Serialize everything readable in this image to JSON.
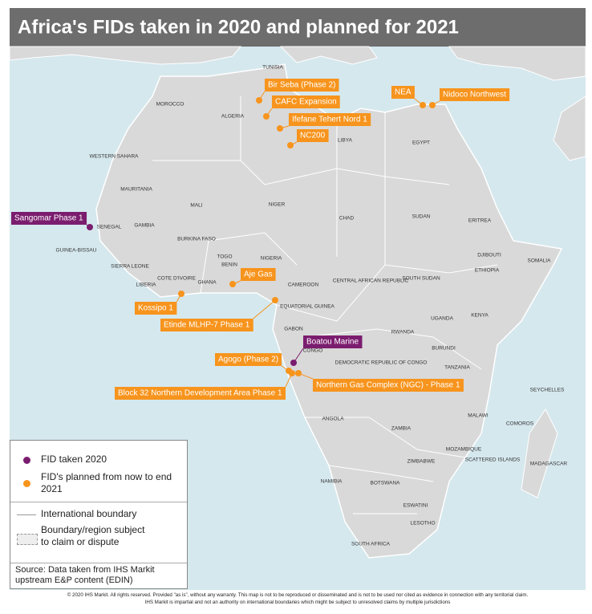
{
  "title": "Africa's FIDs taken in 2020 and planned for 2021",
  "countries": [
    "TUNISIA",
    "MOROCCO",
    "ALGERIA",
    "LIBYA",
    "EGYPT",
    "WESTERN SAHARA",
    "MAURITANIA",
    "MALI",
    "NIGER",
    "CHAD",
    "SUDAN",
    "ERITREA",
    "SENEGAL",
    "GAMBIA",
    "GUINEA-BISSAU",
    "BURKINA FASO",
    "SIERRA LEONE",
    "LIBERIA",
    "COTE D'IVOIRE",
    "GHANA",
    "TOGO",
    "BENIN",
    "NIGERIA",
    "CAMEROON",
    "CENTRAL AFRICAN REPUBLIC",
    "SOUTH SUDAN",
    "ETHIOPIA",
    "DJIBOUTI",
    "SOMALIA",
    "KENYA",
    "UGANDA",
    "EQUATORIAL GUINEA",
    "GABON",
    "CONGO",
    "RWANDA",
    "BURUNDI",
    "DEMOCRATIC REPUBLIC OF CONGO",
    "TANZANIA",
    "SEYCHELLES",
    "COMOROS",
    "ANGOLA",
    "ZAMBIA",
    "MALAWI",
    "MOZAMBIQUE",
    "SCATTERED ISLANDS",
    "MADAGASCAR",
    "ZIMBABWE",
    "NAMIBIA",
    "BOTSWANA",
    "ESWATINI",
    "LESOTHO",
    "SOUTH AFRICA"
  ],
  "legend": {
    "taken": {
      "label": "FID taken 2020",
      "color": "#7b1d6f",
      "projects": [
        "Sangomar Phase 1",
        "Boatou Marine"
      ]
    },
    "planned": {
      "label": "FID's planned from now to end 2021",
      "color": "#f7941d",
      "projects": [
        "Bir Seba (Phase 2)",
        "CAFC Expansion",
        "Ifefane Tehert Nord 1",
        "NC200",
        "NEA",
        "Nidoco Northwest",
        "Aje Gas",
        "Kossipo 1",
        "Etinde MLHP-7 Phase 1",
        "Agogo (Phase 2)",
        "Block 32 Northern Development Area Phase 1",
        "Northern Gas Complex (NGC) - Phase 1"
      ]
    },
    "boundary": "International boundary",
    "disputed": "Boundary/region subject to claim or dispute",
    "source": "Source: Data taken from IHS Markit upstream E&P content (EDIN)"
  },
  "footer": [
    "© 2020 IHS Markit. All rights reserved. Provided \"as is\", without any warranty. This map is not to be reproduced or disseminated and is not to be used nor cited as evidence in connection with any territorial claim.",
    "IHS Markit is impartial and not an authority on international boundaries which might be subject to unresolved claims by multiple jurisdictions"
  ]
}
